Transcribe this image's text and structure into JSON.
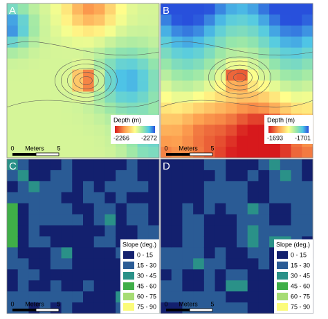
{
  "panels": [
    {
      "label": "A",
      "kind": "depth",
      "legend_title": "Depth (m)",
      "legend_min": -2266,
      "legend_max": -2272,
      "scale": {
        "start": 0,
        "unit": "Meters",
        "end": 5
      }
    },
    {
      "label": "B",
      "kind": "depth",
      "legend_title": "Depth (m)",
      "legend_min": -1693,
      "legend_max": -1701,
      "scale": {
        "start": 0,
        "unit": "Meters",
        "end": 5
      }
    },
    {
      "label": "C",
      "kind": "slope",
      "legend_title": "Slope (deg.)",
      "scale": {
        "start": 0,
        "unit": "Meters",
        "end": 5
      }
    },
    {
      "label": "D",
      "kind": "slope",
      "legend_title": "Slope (deg.)",
      "scale": {
        "start": 0,
        "unit": "Meters",
        "end": 5
      }
    }
  ],
  "slope_classes": [
    {
      "label": "0 - 15",
      "color": "#13206e"
    },
    {
      "label": "15 - 30",
      "color": "#2a5b95"
    },
    {
      "label": "30 - 45",
      "color": "#2a9188"
    },
    {
      "label": "45 - 60",
      "color": "#3fae48"
    },
    {
      "label": "60 - 75",
      "color": "#a6dc74"
    },
    {
      "label": "75 - 90",
      "color": "#fbfb7a"
    }
  ]
}
